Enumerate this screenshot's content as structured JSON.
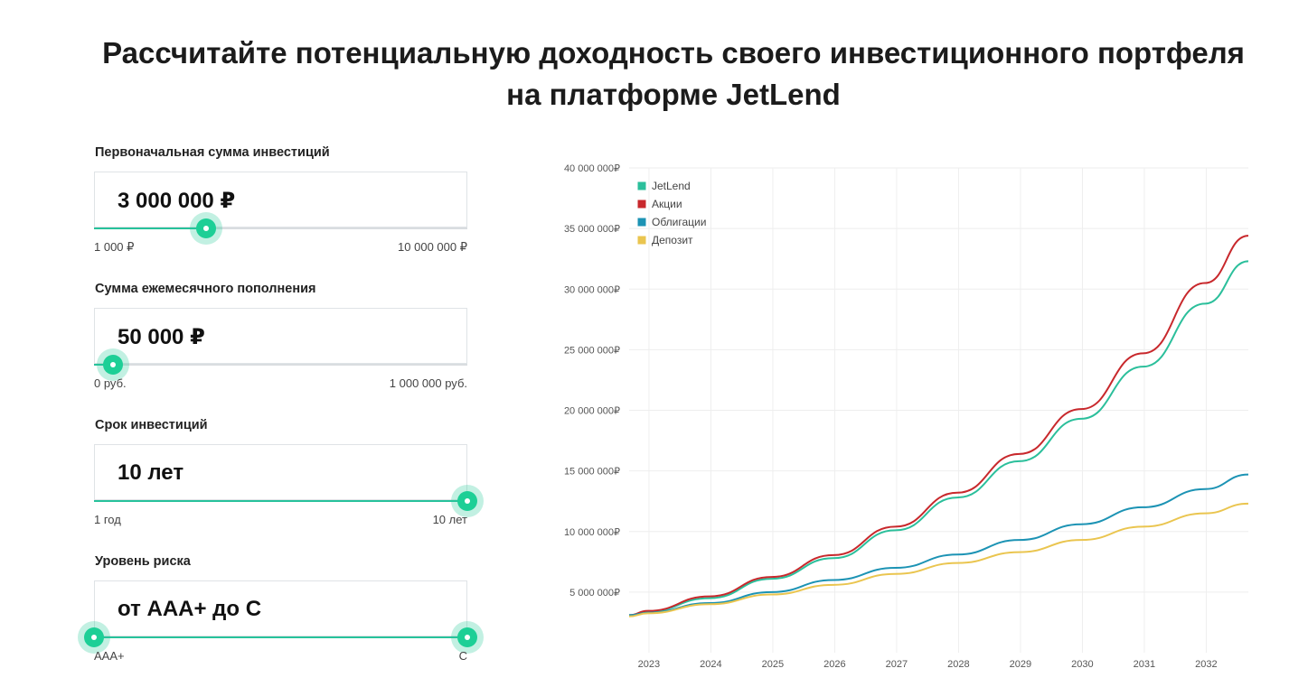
{
  "headline": {
    "line1": "Рассчитайте потенциальную доходность своего инвестиционного портфеля",
    "line2": "на платформе JetLend"
  },
  "params": {
    "initial": {
      "label": "Первоначальная сумма инвестиций",
      "value": "3 000 000 ₽",
      "min": "1 000 ₽",
      "max": "10 000 000 ₽",
      "fraction": 0.3
    },
    "monthly": {
      "label": "Сумма ежемесячного пополнения",
      "value": "50 000 ₽",
      "min": "0 руб.",
      "max": "1 000 000 руб.",
      "fraction": 0.05
    },
    "term": {
      "label": "Срок инвестиций",
      "value": "10 лет",
      "min": "1 год",
      "max": "10 лет",
      "fraction": 1.0
    },
    "risk": {
      "label": "Уровень риска",
      "value": "от AAA+ до C",
      "min": "AAA+",
      "max": "C",
      "fraction_low": 0.0,
      "fraction_high": 1.0
    }
  },
  "colors": {
    "accent": "#1dcf96",
    "jetlend": "#2bbf9b",
    "stocks": "#c8282c",
    "bonds": "#1c93b4",
    "deposit": "#eac54f"
  },
  "chart_data": {
    "type": "line",
    "x": [
      2022.7,
      2023,
      2024,
      2025,
      2026,
      2027,
      2028,
      2029,
      2030,
      2031,
      2032,
      2032.7
    ],
    "x_ticks": [
      "2023",
      "2024",
      "2025",
      "2026",
      "2027",
      "2028",
      "2029",
      "2030",
      "2031",
      "2032"
    ],
    "y_ticks": [
      {
        "value": 5000000,
        "label": "5 000 000₽"
      },
      {
        "value": 10000000,
        "label": "10 000 000₽"
      },
      {
        "value": 15000000,
        "label": "15 000 000₽"
      },
      {
        "value": 20000000,
        "label": "20 000 000₽"
      },
      {
        "value": 25000000,
        "label": "25 000 000₽"
      },
      {
        "value": 30000000,
        "label": "30 000 000₽"
      },
      {
        "value": 35000000,
        "label": "35 000 000₽"
      },
      {
        "value": 40000000,
        "label": "40 000 000₽"
      }
    ],
    "ylim": [
      0,
      40000000
    ],
    "xlim": [
      2022.7,
      2032.7
    ],
    "legend_position": "top-left",
    "series": [
      {
        "name": "JetLend",
        "color": "#2bbf9b",
        "values": [
          3100000,
          3400000,
          4500000,
          6100000,
          7800000,
          10100000,
          12800000,
          15800000,
          19300000,
          23600000,
          28800000,
          32300000
        ]
      },
      {
        "name": "Акции",
        "color": "#c8282c",
        "values": [
          3100000,
          3450000,
          4650000,
          6250000,
          8050000,
          10400000,
          13200000,
          16400000,
          20100000,
          24700000,
          30500000,
          34400000
        ]
      },
      {
        "name": "Облигации",
        "color": "#1c93b4",
        "values": [
          3100000,
          3300000,
          4100000,
          5000000,
          6000000,
          7000000,
          8100000,
          9300000,
          10600000,
          12000000,
          13500000,
          14700000
        ]
      },
      {
        "name": "Депозит",
        "color": "#eac54f",
        "values": [
          3000000,
          3250000,
          4000000,
          4800000,
          5600000,
          6500000,
          7400000,
          8300000,
          9300000,
          10400000,
          11500000,
          12300000
        ]
      }
    ]
  }
}
